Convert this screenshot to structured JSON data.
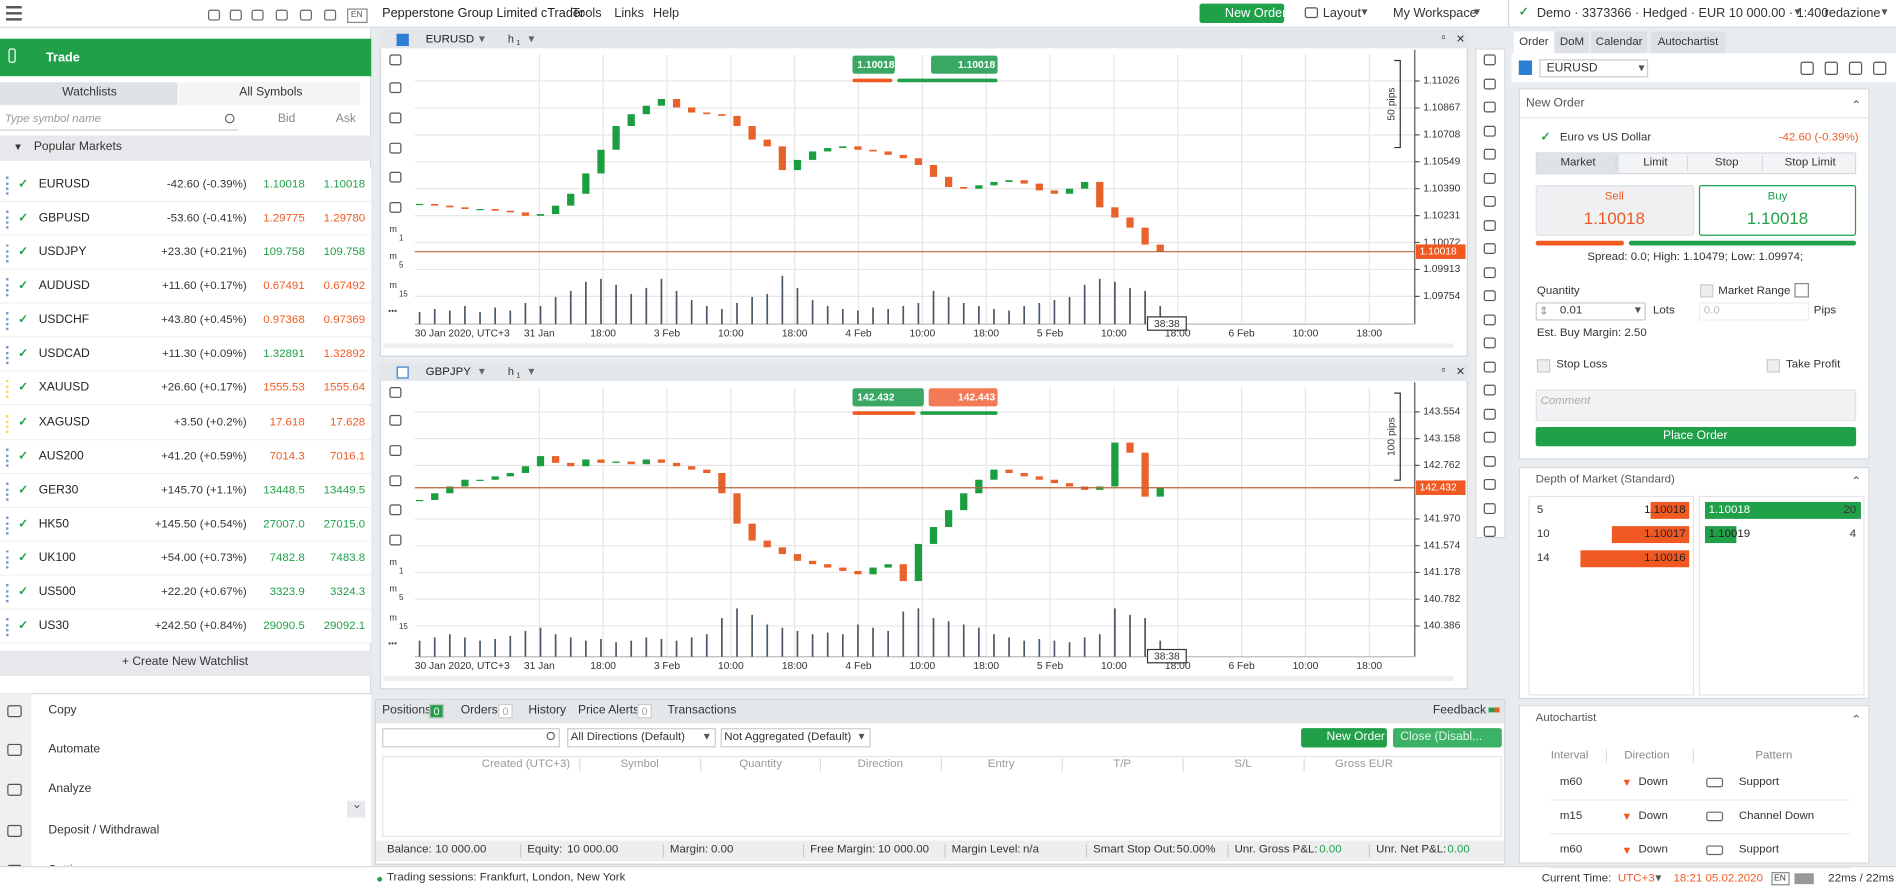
{
  "toolbar": {
    "brand": "Pepperstone Group Limited cTrader",
    "menu": [
      "Tools",
      "Links",
      "Help"
    ],
    "new_order": "New Order",
    "layout": "Layout",
    "workspace": "My Workspace",
    "account": "Demo · 3373366 · Hedged · EUR 10 000.00 · 1:400",
    "user": "redazione",
    "lang": "EN"
  },
  "left": {
    "trade": "Trade",
    "tabs": [
      "Watchlists",
      "All Symbols"
    ],
    "search_placeholder": "Type symbol name",
    "bid": "Bid",
    "ask": "Ask",
    "group": "Popular Markets",
    "rows": [
      {
        "symbol": "EURUSD",
        "change": "-42.60 (-0.39%)",
        "bid": "1.10018",
        "ask": "1.10018",
        "colors": [
          "#21a04a",
          "#21a04a"
        ]
      },
      {
        "symbol": "GBPUSD",
        "change": "-53.60 (-0.41%)",
        "bid": "1.29775",
        "ask": "1.29780",
        "colors": [
          "#f05a22",
          "#f05a22"
        ]
      },
      {
        "symbol": "USDJPY",
        "change": "+23.30 (+0.21%)",
        "bid": "109.758",
        "ask": "109.758",
        "colors": [
          "#21a04a",
          "#21a04a"
        ]
      },
      {
        "symbol": "AUDUSD",
        "change": "+11.60 (+0.17%)",
        "bid": "0.67491",
        "ask": "0.67492",
        "colors": [
          "#f05a22",
          "#f05a22"
        ]
      },
      {
        "symbol": "USDCHF",
        "change": "+43.80 (+0.45%)",
        "bid": "0.97368",
        "ask": "0.97369",
        "colors": [
          "#f05a22",
          "#f05a22"
        ]
      },
      {
        "symbol": "USDCAD",
        "change": "+11.30 (+0.09%)",
        "bid": "1.32891",
        "ask": "1.32892",
        "colors": [
          "#21a04a",
          "#f05a22"
        ]
      },
      {
        "symbol": "XAUUSD",
        "change": "+26.60 (+0.17%)",
        "bid": "1555.53",
        "ask": "1555.64",
        "colors": [
          "#f05a22",
          "#f05a22"
        ]
      },
      {
        "symbol": "XAGUSD",
        "change": "+3.50 (+0.2%)",
        "bid": "17.618",
        "ask": "17.628",
        "colors": [
          "#f05a22",
          "#f05a22"
        ]
      },
      {
        "symbol": "AUS200",
        "change": "+41.20 (+0.59%)",
        "bid": "7014.3",
        "ask": "7016.1",
        "colors": [
          "#f05a22",
          "#f05a22"
        ]
      },
      {
        "symbol": "GER30",
        "change": "+145.70 (+1.1%)",
        "bid": "13448.5",
        "ask": "13449.5",
        "colors": [
          "#21a04a",
          "#21a04a"
        ]
      },
      {
        "symbol": "HK50",
        "change": "+145.50 (+0.54%)",
        "bid": "27007.0",
        "ask": "27015.0",
        "colors": [
          "#21a04a",
          "#21a04a"
        ]
      },
      {
        "symbol": "UK100",
        "change": "+54.00 (+0.73%)",
        "bid": "7482.8",
        "ask": "7483.8",
        "colors": [
          "#21a04a",
          "#21a04a"
        ]
      },
      {
        "symbol": "US500",
        "change": "+22.20 (+0.67%)",
        "bid": "3323.9",
        "ask": "3324.3",
        "colors": [
          "#21a04a",
          "#21a04a"
        ]
      },
      {
        "symbol": "US30",
        "change": "+242.50 (+0.84%)",
        "bid": "29090.5",
        "ask": "29092.1",
        "colors": [
          "#21a04a",
          "#21a04a"
        ]
      }
    ],
    "create": "+ Create New Watchlist",
    "nav": [
      "Copy",
      "Automate",
      "Analyze",
      "Deposit / Withdrawal",
      "Settings"
    ]
  },
  "chart_tools": [
    {
      "unit": "m",
      "n": "1"
    },
    {
      "unit": "m",
      "n": "5"
    },
    {
      "unit": "m",
      "n": "15"
    }
  ],
  "charts": [
    {
      "type": "candlestick",
      "symbol": "EURUSD",
      "timeframe": "h",
      "timeframe_n": "1",
      "sell": "1.10018",
      "buy": "1.10018",
      "sell_color": "#3aa864",
      "buy_color": "#3aa864",
      "pips": "50 pips",
      "countdown": "38:38",
      "ylim": [
        1.0959,
        1.11183
      ],
      "yticks": [
        {
          "value": 1.11026,
          "label": "1.11026"
        },
        {
          "value": 1.10867,
          "label": "1.10867"
        },
        {
          "value": 1.10708,
          "label": "1.10708"
        },
        {
          "value": 1.10549,
          "label": "1.10549"
        },
        {
          "value": 1.1039,
          "label": "1.10390"
        },
        {
          "value": 1.10231,
          "label": "1.10231"
        },
        {
          "value": 1.10072,
          "label": "1.10072"
        },
        {
          "value": 1.09913,
          "label": "1.09913"
        },
        {
          "value": 1.09754,
          "label": "1.09754"
        }
      ],
      "current": {
        "value": 1.10018,
        "label": "1.10018"
      },
      "time_labels": [
        "30 Jan 2020, UTC+3",
        "31 Jan",
        "18:00",
        "3 Feb",
        "10:00",
        "18:00",
        "4 Feb",
        "10:00",
        "18:00",
        "5 Feb",
        "10:00",
        "18:00",
        "6 Feb",
        "10:00",
        "18:00"
      ],
      "closes": [
        1.103,
        1.1029,
        1.1028,
        1.1027,
        1.1027,
        1.1026,
        1.1025,
        1.1023,
        1.1024,
        1.1029,
        1.1036,
        1.1048,
        1.1062,
        1.1076,
        1.1083,
        1.1088,
        1.1092,
        1.1087,
        1.1084,
        1.1083,
        1.1082,
        1.1076,
        1.1068,
        1.1064,
        1.105,
        1.1056,
        1.1061,
        1.1063,
        1.1064,
        1.1062,
        1.1061,
        1.1059,
        1.1057,
        1.1053,
        1.1046,
        1.104,
        1.1039,
        1.1041,
        1.1043,
        1.1044,
        1.1042,
        1.1038,
        1.1036,
        1.1039,
        1.1043,
        1.1028,
        1.1022,
        1.1016,
        1.1006,
        1.10018
      ],
      "volumes": [
        8,
        10,
        9,
        12,
        8,
        11,
        9,
        14,
        12,
        18,
        22,
        28,
        30,
        26,
        20,
        24,
        30,
        22,
        16,
        12,
        10,
        14,
        18,
        20,
        32,
        24,
        16,
        12,
        10,
        9,
        11,
        10,
        12,
        14,
        22,
        18,
        14,
        12,
        10,
        9,
        12,
        14,
        16,
        18,
        26,
        30,
        28,
        24,
        22,
        12
      ]
    },
    {
      "type": "candlestick",
      "symbol": "GBPJPY",
      "timeframe": "h",
      "timeframe_n": "1",
      "sell": "142.432",
      "buy": "142.443",
      "sell_color": "#3aa864",
      "buy_color": "#f27a55",
      "pips": "100 pips",
      "countdown": "38:38",
      "ylim": [
        139.93,
        143.922
      ],
      "yticks": [
        {
          "value": 143.554,
          "label": "143.554"
        },
        {
          "value": 143.158,
          "label": "143.158"
        },
        {
          "value": 142.762,
          "label": "142.762"
        },
        {
          "value": 141.97,
          "label": "141.970"
        },
        {
          "value": 141.574,
          "label": "141.574"
        },
        {
          "value": 141.178,
          "label": "141.178"
        },
        {
          "value": 140.782,
          "label": "140.782"
        },
        {
          "value": 140.386,
          "label": "140.386"
        }
      ],
      "current": {
        "value": 142.432,
        "label": "142.432"
      },
      "time_labels": [
        "30 Jan 2020, UTC+3",
        "31 Jan",
        "18:00",
        "3 Feb",
        "10:00",
        "18:00",
        "4 Feb",
        "10:00",
        "18:00",
        "5 Feb",
        "10:00",
        "18:00",
        "6 Feb",
        "10:00",
        "18:00"
      ],
      "closes": [
        142.25,
        142.35,
        142.45,
        142.55,
        142.55,
        142.6,
        142.65,
        142.75,
        142.9,
        142.8,
        142.75,
        142.85,
        142.8,
        142.82,
        142.78,
        142.85,
        142.8,
        142.75,
        142.7,
        142.65,
        142.35,
        141.9,
        141.65,
        141.55,
        141.45,
        141.35,
        141.3,
        141.25,
        141.2,
        141.15,
        141.25,
        141.3,
        141.05,
        141.6,
        141.85,
        142.1,
        142.35,
        142.55,
        142.7,
        142.65,
        142.6,
        142.55,
        142.5,
        142.45,
        142.4,
        142.45,
        143.1,
        142.95,
        142.3,
        142.43
      ],
      "volumes": [
        10,
        12,
        14,
        12,
        10,
        11,
        13,
        16,
        18,
        14,
        12,
        10,
        11,
        9,
        10,
        12,
        11,
        10,
        12,
        14,
        24,
        30,
        26,
        20,
        18,
        16,
        14,
        15,
        14,
        20,
        18,
        16,
        28,
        30,
        24,
        22,
        20,
        18,
        14,
        12,
        10,
        11,
        10,
        9,
        12,
        14,
        30,
        26,
        24,
        10
      ]
    }
  ],
  "bottom": {
    "tabs": [
      {
        "label": "Positions",
        "count": "0"
      },
      {
        "label": "Orders",
        "count": "0"
      },
      {
        "label": "History"
      },
      {
        "label": "Price Alerts",
        "count": "0"
      },
      {
        "label": "Transactions"
      }
    ],
    "feedback": "Feedback",
    "filters": [
      "All Directions (Default)",
      "Not Aggregated (Default)"
    ],
    "new_order": "New Order",
    "close": "Close (Disabl...",
    "columns": [
      "Created (UTC+3)",
      "Symbol",
      "Quantity",
      "Direction",
      "Entry",
      "T/P",
      "S/L",
      "Gross EUR"
    ],
    "status": [
      [
        "Balance:",
        "10 000.00"
      ],
      [
        "Equity:",
        "10 000.00"
      ],
      [
        "Margin:",
        "0.00"
      ],
      [
        "Free Margin:",
        "10 000.00"
      ],
      [
        "Margin Level:",
        "n/a"
      ],
      [
        "Smart Stop Out:",
        "50.00%"
      ],
      [
        "Unr. Gross P&L:",
        "0.00"
      ],
      [
        "Unr. Net P&L:",
        "0.00"
      ]
    ],
    "sessions": "Trading sessions: Frankfurt, London, New York"
  },
  "right": {
    "tabs": [
      "Order",
      "DoM",
      "Calendar",
      "Autochartist"
    ],
    "symbol": "EURUSD",
    "section": "New Order",
    "name": "Euro vs US Dollar",
    "change": "-42.60 (-0.39%)",
    "order_types": [
      "Market",
      "Limit",
      "Stop",
      "Stop Limit"
    ],
    "sell": "Sell",
    "sell_price": "1.10018",
    "buy": "Buy",
    "buy_price": "1.10018",
    "spread": "Spread: 0.0; High: 1.10479; Low: 1.09974;",
    "quantity": "Quantity",
    "qty_value": "0.01",
    "lots": "Lots",
    "market_range": "Market Range",
    "range_value": "0.0",
    "pips": "Pips",
    "margin": "Est. Buy Margin: 2.50",
    "stop_loss": "Stop Loss",
    "take_profit": "Take Profit",
    "comment": "Comment",
    "place": "Place Order",
    "dom_title": "Depth of Market (Standard)",
    "dom_sell": [
      {
        "qty": 5,
        "price": "1.10018"
      },
      {
        "qty": 10,
        "price": "1.10017"
      },
      {
        "qty": 14,
        "price": "1.10016"
      }
    ],
    "dom_buy": [
      {
        "price": "1.10018",
        "qty": 20
      },
      {
        "price": "1.10019",
        "qty": 4
      }
    ],
    "ac_title": "Autochartist",
    "ac_columns": [
      "Interval",
      "Direction",
      "Pattern"
    ],
    "ac_rows": [
      [
        "m60",
        "Down",
        "Support"
      ],
      [
        "m15",
        "Down",
        "Channel Down"
      ],
      [
        "m60",
        "Down",
        "Support"
      ]
    ]
  },
  "footer": {
    "time_label": "Current Time:",
    "zone": "UTC+3",
    "time": "18:21 05.02.2020",
    "lang": "EN",
    "latency": "22ms / 22ms"
  }
}
